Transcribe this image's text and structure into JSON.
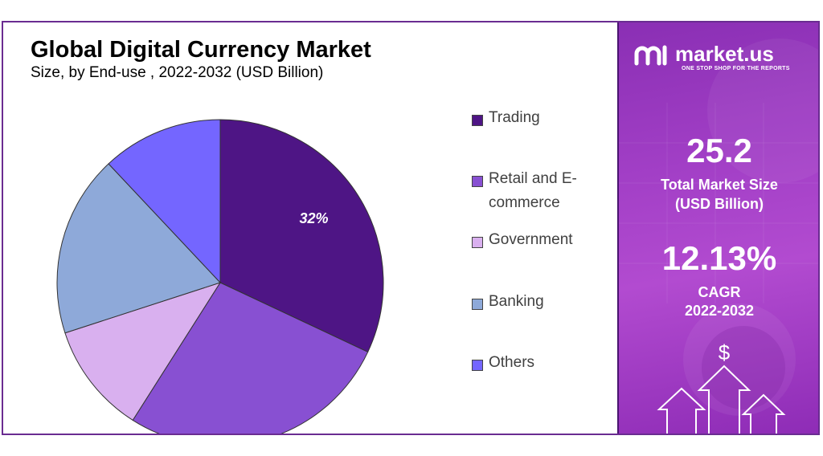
{
  "chart_data": {
    "type": "pie",
    "title": "Global Digital Currency Market",
    "subtitle": "Size, by End-use , 2022-2032 (USD Billion)",
    "categories": [
      "Trading",
      "Retail and E-commerce",
      "Government",
      "Banking",
      "Others"
    ],
    "values": [
      32,
      27,
      11,
      18,
      12
    ],
    "colors": [
      "#4e1585",
      "#8850d2",
      "#d9b0ef",
      "#8ea9d9",
      "#7466ff"
    ],
    "data_labels": [
      "32%",
      "",
      "",
      "",
      ""
    ],
    "legend_position": "right"
  },
  "legend": {
    "items": [
      {
        "label": "Trading",
        "color": "#4e1585"
      },
      {
        "label": "Retail and E-commerce",
        "color": "#8850d2"
      },
      {
        "label": "Government",
        "color": "#d9b0ef"
      },
      {
        "label": "Banking",
        "color": "#8ea9d9"
      },
      {
        "label": "Others",
        "color": "#7466ff"
      }
    ]
  },
  "sidebar": {
    "brand": "market.us",
    "tagline": "ONE STOP SHOP FOR THE REPORTS",
    "market_size_value": "25.2",
    "market_size_label_1": "Total Market Size",
    "market_size_label_2": "(USD Billion)",
    "cagr_value": "12.13%",
    "cagr_label_1": "CAGR",
    "cagr_label_2": "2022-2032",
    "dollar_icon": "$"
  }
}
